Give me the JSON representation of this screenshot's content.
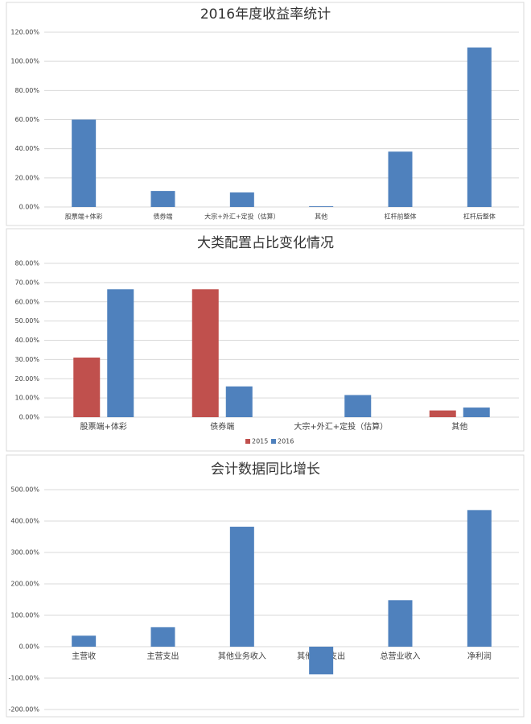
{
  "chart_data": [
    {
      "type": "bar",
      "title": "2016年度收益率统计",
      "categories": [
        "股票端+体彩",
        "债券端",
        "大宗+外汇+定投（估算）",
        "其他",
        "杠杆前整体",
        "杠杆后整体"
      ],
      "series": [
        {
          "color": "#4f81bd",
          "values": [
            60,
            11,
            10,
            0.5,
            38,
            109.5
          ]
        }
      ],
      "ylim": [
        0,
        120
      ],
      "yticks": [
        {
          "value": 0,
          "label": "0.00%"
        },
        {
          "value": 20,
          "label": "20.00%"
        },
        {
          "value": 40,
          "label": "40.00%"
        },
        {
          "value": 60,
          "label": "60.00%"
        },
        {
          "value": 80,
          "label": "80.00%"
        },
        {
          "value": 100,
          "label": "100.00%"
        },
        {
          "value": 120,
          "label": "120.00%"
        }
      ],
      "grid": true
    },
    {
      "type": "bar",
      "title": "大类配置占比变化情况",
      "categories": [
        "股票端+体彩",
        "债券端",
        "大宗+外汇+定投（估算）",
        "其他"
      ],
      "series": [
        {
          "name": "2015",
          "color": "#c0504d",
          "values": [
            31,
            66.5,
            null,
            3.5
          ]
        },
        {
          "name": "2016",
          "color": "#4f81bd",
          "values": [
            66.5,
            16,
            11.5,
            5
          ]
        }
      ],
      "ylim": [
        0,
        80
      ],
      "yticks": [
        {
          "value": 0,
          "label": "0.00%"
        },
        {
          "value": 10,
          "label": "10.00%"
        },
        {
          "value": 20,
          "label": "20.00%"
        },
        {
          "value": 30,
          "label": "30.00%"
        },
        {
          "value": 40,
          "label": "40.00%"
        },
        {
          "value": 50,
          "label": "50.00%"
        },
        {
          "value": 60,
          "label": "60.00%"
        },
        {
          "value": 70,
          "label": "70.00%"
        },
        {
          "value": 80,
          "label": "80.00%"
        }
      ],
      "grid": true,
      "legend": "bottom"
    },
    {
      "type": "bar",
      "title": "会计数据同比增长",
      "categories": [
        "主营收",
        "主营支出",
        "其他业务收入",
        "其他业务支出",
        "总营业收入",
        "净利润"
      ],
      "series": [
        {
          "color": "#4f81bd",
          "values": [
            35,
            62,
            382,
            -88,
            148,
            435
          ]
        }
      ],
      "ylim": [
        -200,
        500
      ],
      "yticks": [
        {
          "value": -200,
          "label": "-200.00%"
        },
        {
          "value": -100,
          "label": "-100.00%"
        },
        {
          "value": 0,
          "label": "0.00%"
        },
        {
          "value": 100,
          "label": "100.00%"
        },
        {
          "value": 200,
          "label": "200.00%"
        },
        {
          "value": 300,
          "label": "300.00%"
        },
        {
          "value": 400,
          "label": "400.00%"
        },
        {
          "value": 500,
          "label": "500.00%"
        }
      ],
      "grid": true
    }
  ]
}
